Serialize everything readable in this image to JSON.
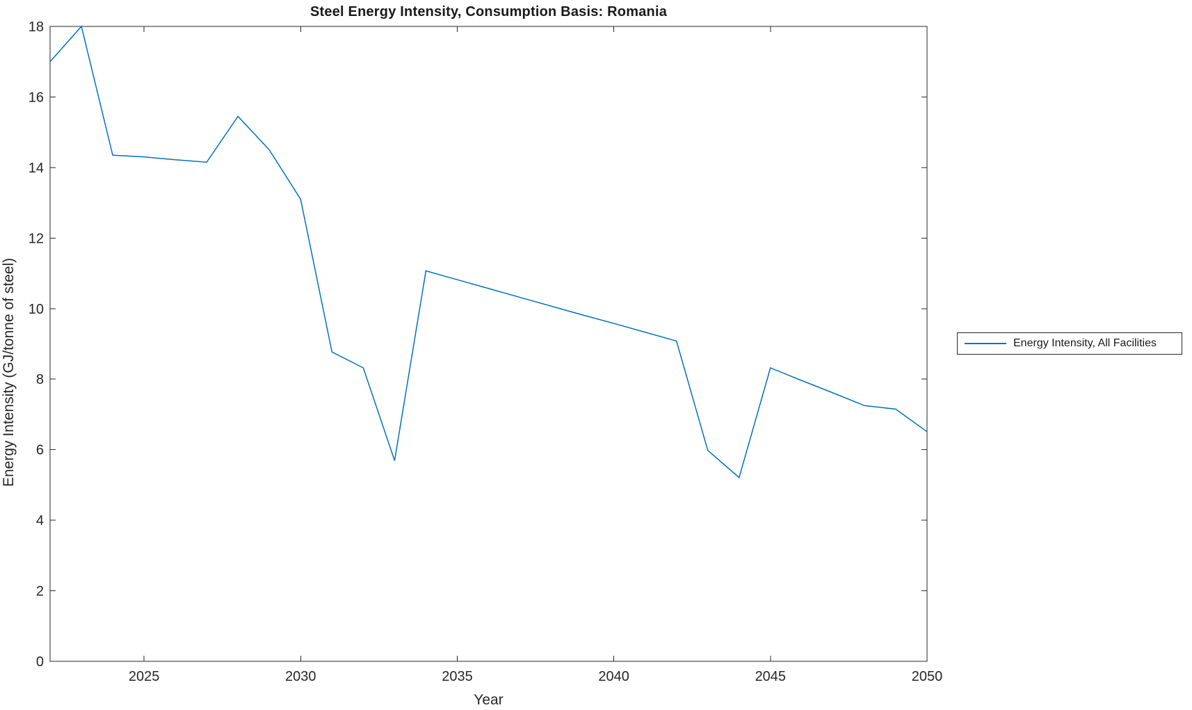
{
  "figure": {
    "title": "Steel Energy Intensity, Consumption Basis: Romania",
    "xlabel": "Year",
    "ylabel": "Energy Intensity (GJ/tonne of steel)",
    "background": "#ffffff"
  },
  "legend": {
    "entries": [
      {
        "label": "Energy Intensity, All Facilities",
        "color": "#0072BD"
      }
    ],
    "position": "right-outside"
  },
  "chart_data": {
    "type": "line",
    "title": "Steel Energy Intensity, Consumption Basis: Romania",
    "xlabel": "Year",
    "ylabel": "Energy Intensity (GJ/tonne of steel)",
    "x": [
      2022,
      2023,
      2024,
      2025,
      2026,
      2027,
      2028,
      2029,
      2030,
      2031,
      2032,
      2033,
      2034,
      2035,
      2036,
      2037,
      2038,
      2039,
      2040,
      2041,
      2042,
      2043,
      2044,
      2045,
      2046,
      2047,
      2048,
      2049,
      2050
    ],
    "series": [
      {
        "name": "Energy Intensity, All Facilities",
        "color": "#0072BD",
        "values": [
          17.0,
          18.0,
          14.35,
          14.3,
          14.22,
          14.15,
          15.45,
          14.5,
          13.1,
          8.77,
          8.32,
          5.69,
          11.07,
          10.82,
          10.57,
          10.32,
          10.07,
          9.82,
          9.58,
          9.33,
          9.08,
          5.98,
          5.21,
          8.32,
          7.96,
          7.61,
          7.25,
          7.15,
          6.51
        ]
      }
    ],
    "xlim": [
      2022,
      2050
    ],
    "ylim": [
      0,
      18
    ],
    "xticks": [
      2025,
      2030,
      2035,
      2040,
      2045,
      2050
    ],
    "yticks": [
      0,
      2,
      4,
      6,
      8,
      10,
      12,
      14,
      16,
      18
    ],
    "grid": false,
    "legend_position": "right-outside",
    "axis_color": "#262626",
    "background": "#ffffff"
  }
}
